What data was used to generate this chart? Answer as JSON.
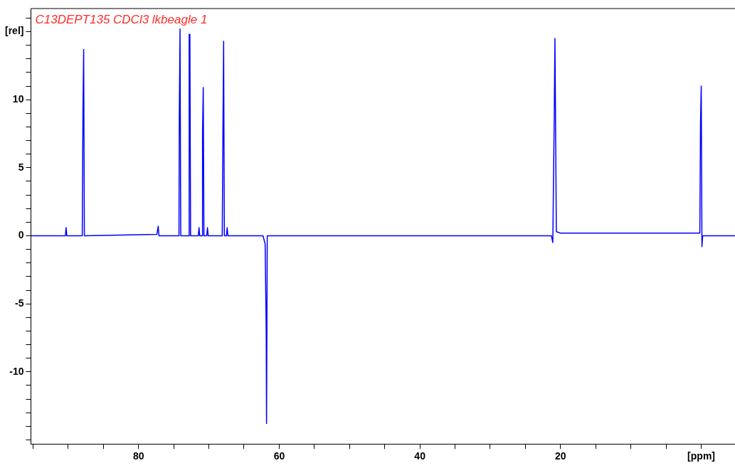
{
  "chart_data": {
    "type": "line",
    "title": "C13DEPT135 CDCl3 lkbeagle 1",
    "series": [
      {
        "color": "#0000ff",
        "x": [
          95.3,
          90.4,
          90.3,
          90.2,
          88.0,
          87.9,
          87.8,
          87.7,
          77.4,
          77.2,
          77.1,
          74.25,
          74.2,
          74.1,
          74.0,
          72.85,
          72.8,
          72.7,
          72.6,
          71.5,
          71.4,
          71.3,
          70.95,
          70.9,
          70.8,
          70.7,
          70.3,
          70.2,
          70.1,
          68.1,
          68.0,
          67.9,
          67.8,
          67.5,
          67.4,
          67.3,
          62.3,
          62.0,
          61.85,
          61.8,
          61.7,
          21.3,
          21.1,
          21.0,
          20.9,
          20.8,
          20.7,
          20.6,
          20.0,
          0.2,
          0.1,
          0.0,
          -0.1,
          -0.2,
          -4.8
        ],
        "values": [
          0,
          0,
          0.6,
          0,
          0,
          9.2,
          13.7,
          0,
          0.1,
          0.7,
          0,
          0,
          8.8,
          15.2,
          0,
          0,
          14.8,
          14.8,
          0,
          0,
          0.6,
          0,
          0,
          7.6,
          10.9,
          0,
          0,
          0.6,
          0,
          0,
          7.7,
          14.3,
          0,
          0,
          0.6,
          0,
          0,
          -0.6,
          -7,
          -13.8,
          0,
          0,
          -0.5,
          4.2,
          8.6,
          14.5,
          7.6,
          0.3,
          0.2,
          0.2,
          8.4,
          11.0,
          -0.8,
          0,
          0
        ]
      }
    ],
    "xlim": [
      95.3,
      -4.8
    ],
    "xticks": [
      {
        "value": 95,
        "label": null
      },
      {
        "value": 90,
        "label": null
      },
      {
        "value": 85,
        "label": null
      },
      80,
      {
        "value": 75,
        "label": null
      },
      {
        "value": 70,
        "label": null
      },
      {
        "value": 65,
        "label": null
      },
      60,
      {
        "value": 55,
        "label": null
      },
      {
        "value": 50,
        "label": null
      },
      {
        "value": 45,
        "label": null
      },
      40,
      {
        "value": 35,
        "label": null
      },
      {
        "value": 30,
        "label": null
      },
      {
        "value": 25,
        "label": null
      },
      20,
      {
        "value": 15,
        "label": null
      },
      {
        "value": 10,
        "label": null
      },
      {
        "value": 5,
        "label": null
      },
      {
        "value": 0,
        "label": "[ppm]"
      }
    ],
    "ylim": [
      -15.3,
      16.7
    ],
    "yticks": [
      {
        "value": -15,
        "label": null
      },
      {
        "value": -14,
        "label": null
      },
      {
        "value": -13,
        "label": null
      },
      {
        "value": -12,
        "label": null
      },
      {
        "value": -11,
        "label": null
      },
      -10,
      {
        "value": -9,
        "label": null
      },
      {
        "value": -8,
        "label": null
      },
      {
        "value": -7,
        "label": null
      },
      {
        "value": -6,
        "label": null
      },
      -5,
      {
        "value": -4,
        "label": null
      },
      {
        "value": -3,
        "label": null
      },
      {
        "value": -2,
        "label": null
      },
      {
        "value": -1,
        "label": null
      },
      0,
      {
        "value": 1,
        "label": null
      },
      {
        "value": 2,
        "label": null
      },
      {
        "value": 3,
        "label": null
      },
      {
        "value": 4,
        "label": null
      },
      5,
      {
        "value": 6,
        "label": null
      },
      {
        "value": 7,
        "label": null
      },
      {
        "value": 8,
        "label": null
      },
      {
        "value": 9,
        "label": null
      },
      10,
      {
        "value": 11,
        "label": null
      },
      {
        "value": 12,
        "label": null
      },
      {
        "value": 13,
        "label": null
      },
      {
        "value": 14,
        "label": null
      },
      {
        "value": 15,
        "label": "[rel]"
      },
      {
        "value": 16,
        "label": null
      }
    ],
    "grid": false,
    "legend": false,
    "marker": "none",
    "line_style": "solid"
  }
}
